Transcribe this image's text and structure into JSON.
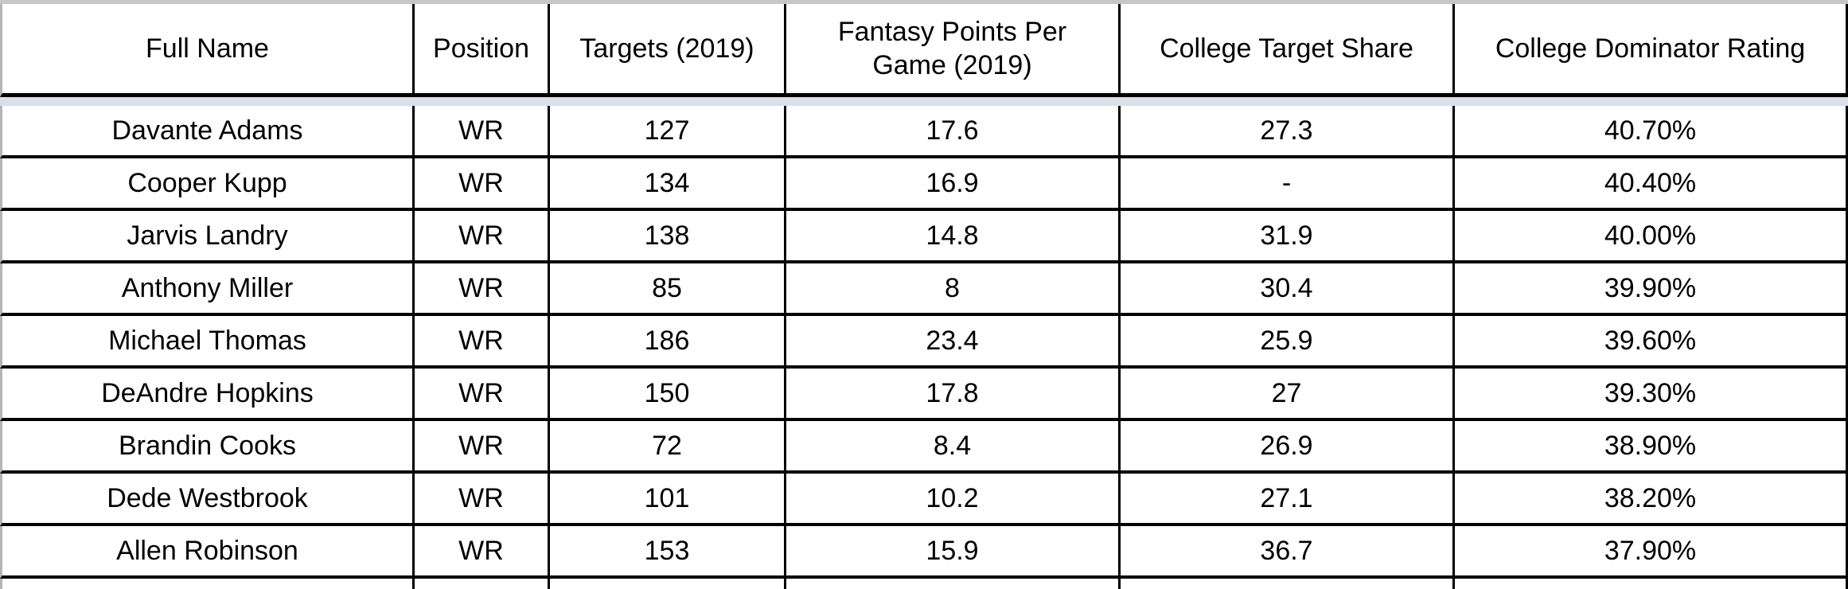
{
  "table": {
    "columns": [
      {
        "label": "Full Name"
      },
      {
        "label": "Position"
      },
      {
        "label": "Targets (2019)"
      },
      {
        "label": "Fantasy Points Per Game (2019)"
      },
      {
        "label": "College Target Share"
      },
      {
        "label": "College Dominator Rating"
      }
    ],
    "rows": [
      [
        "Davante Adams",
        "WR",
        "127",
        "17.6",
        "27.3",
        "40.70%"
      ],
      [
        "Cooper Kupp",
        "WR",
        "134",
        "16.9",
        "-",
        "40.40%"
      ],
      [
        "Jarvis Landry",
        "WR",
        "138",
        "14.8",
        "31.9",
        "40.00%"
      ],
      [
        "Anthony Miller",
        "WR",
        "85",
        "8",
        "30.4",
        "39.90%"
      ],
      [
        "Michael Thomas",
        "WR",
        "186",
        "23.4",
        "25.9",
        "39.60%"
      ],
      [
        "DeAndre Hopkins",
        "WR",
        "150",
        "17.8",
        "27",
        "39.30%"
      ],
      [
        "Brandin Cooks",
        "WR",
        "72",
        "8.4",
        "26.9",
        "38.90%"
      ],
      [
        "Dede Westbrook",
        "WR",
        "101",
        "10.2",
        "27.1",
        "38.20%"
      ],
      [
        "Allen Robinson",
        "WR",
        "153",
        "15.9",
        "36.7",
        "37.90%"
      ]
    ]
  },
  "colors": {
    "gridline": "#000000",
    "top_divider": "#c6c6c6",
    "left_edge": "#b4b4b4",
    "frozen_divider": "#dbdfe6",
    "cell_background": "#ffffff",
    "text": "#000000"
  }
}
